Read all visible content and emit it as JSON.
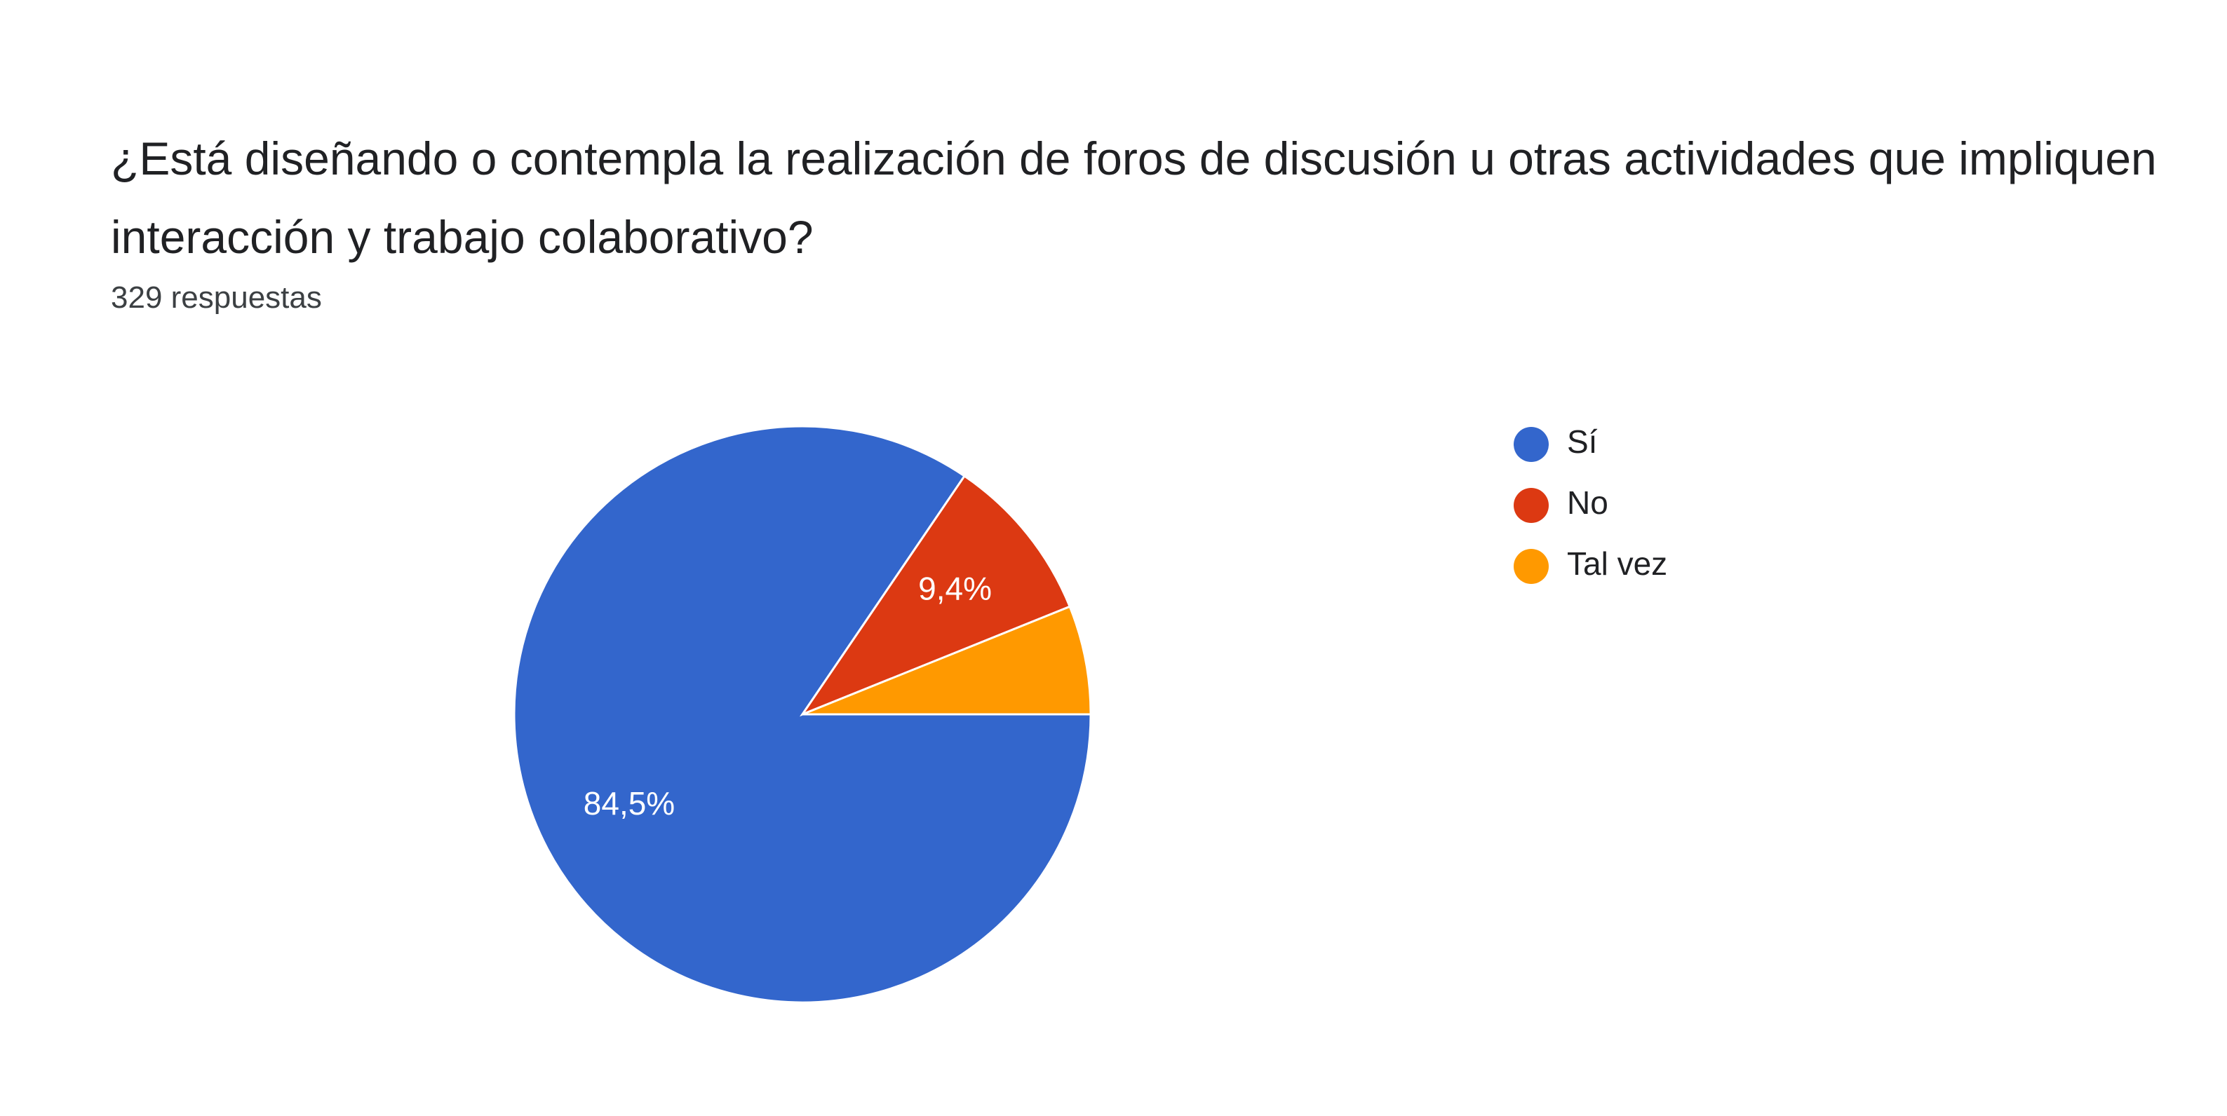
{
  "chart_data": {
    "type": "pie",
    "title": "¿Está diseñando o contempla la realización de foros de discusión u otras actividades que impliquen interacción y trabajo colaborativo?",
    "subtitle": "329 respuestas",
    "categories": [
      "Sí",
      "No",
      "Tal vez"
    ],
    "values": [
      84.5,
      9.4,
      6.1
    ],
    "value_labels": [
      "84,5%",
      "9,4%",
      null
    ],
    "colors": [
      "#3366cc",
      "#dc3912",
      "#ff9900"
    ],
    "legend": "right"
  }
}
